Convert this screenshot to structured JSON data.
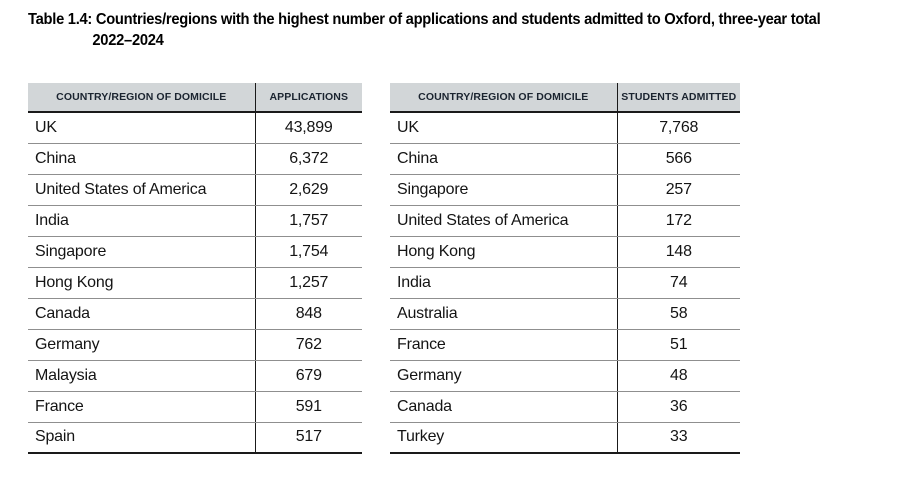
{
  "title": {
    "line1": "Table 1.4: Countries/regions with the highest number of applications and students admitted to Oxford, three-year total",
    "line2": "2022–2024"
  },
  "tables": [
    {
      "name": "applications",
      "headers": [
        "COUNTRY/REGION OF DOMICILE",
        "APPLICATIONS"
      ],
      "rows": [
        {
          "country": "UK",
          "value": "43,899"
        },
        {
          "country": "China",
          "value": "6,372"
        },
        {
          "country": "United States of America",
          "value": "2,629"
        },
        {
          "country": "India",
          "value": "1,757"
        },
        {
          "country": "Singapore",
          "value": "1,754"
        },
        {
          "country": "Hong Kong",
          "value": "1,257"
        },
        {
          "country": "Canada",
          "value": "848"
        },
        {
          "country": "Germany",
          "value": "762"
        },
        {
          "country": "Malaysia",
          "value": "679"
        },
        {
          "country": "France",
          "value": "591"
        },
        {
          "country": "Spain",
          "value": "517"
        }
      ]
    },
    {
      "name": "students-admitted",
      "headers": [
        "COUNTRY/REGION OF DOMICILE",
        "STUDENTS ADMITTED"
      ],
      "rows": [
        {
          "country": "UK",
          "value": "7,768"
        },
        {
          "country": "China",
          "value": "566"
        },
        {
          "country": "Singapore",
          "value": "257"
        },
        {
          "country": "United States of America",
          "value": "172"
        },
        {
          "country": "Hong Kong",
          "value": "148"
        },
        {
          "country": "India",
          "value": "74"
        },
        {
          "country": "Australia",
          "value": "58"
        },
        {
          "country": "France",
          "value": "51"
        },
        {
          "country": "Germany",
          "value": "48"
        },
        {
          "country": "Canada",
          "value": "36"
        },
        {
          "country": "Turkey",
          "value": "33"
        }
      ]
    }
  ],
  "colors": {
    "header_bg": "#d2d6d8",
    "header_text": "#1b2430",
    "body_text": "#141414",
    "thick_border": "#1a1a1a",
    "row_separator": "#8f8f8f",
    "page_bg": "#ffffff"
  }
}
